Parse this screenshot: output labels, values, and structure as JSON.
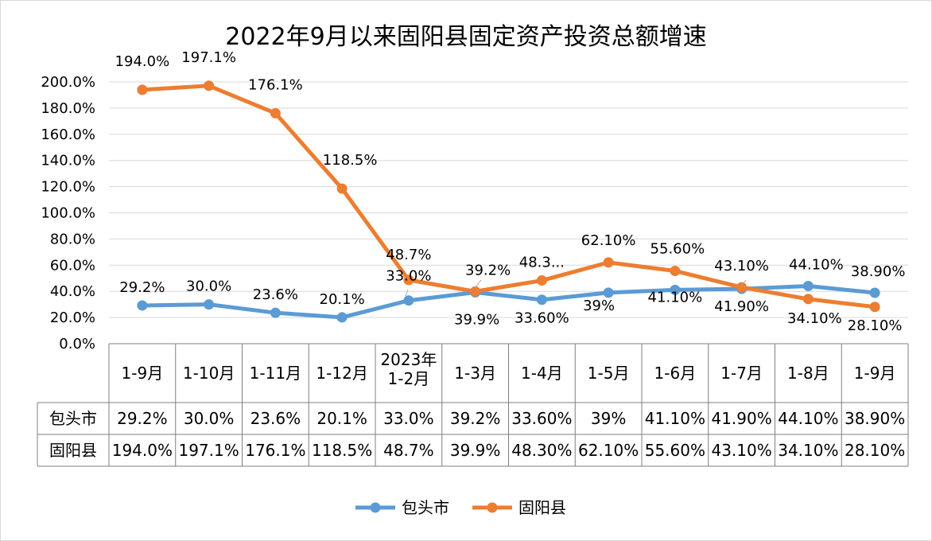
{
  "chart_data": {
    "type": "line",
    "title": "2022年9月以来固阳县固定资产投资总额增速",
    "categories": [
      "1-9月",
      "1-10月",
      "1-11月",
      "1-12月",
      "2023年\n1-2月",
      "1-3月",
      "1-4月",
      "1-5月",
      "1-6月",
      "1-7月",
      "1-8月",
      "1-9月"
    ],
    "ylim": [
      0,
      200
    ],
    "ytick_step": 20,
    "ytick_labels": [
      "0.0%",
      "20.0%",
      "40.0%",
      "60.0%",
      "80.0%",
      "100.0%",
      "120.0%",
      "140.0%",
      "160.0%",
      "180.0%",
      "200.0%"
    ],
    "grid": true,
    "legend_position": "bottom",
    "series": [
      {
        "name": "包头市",
        "color": "#5B9BD5",
        "values": [
          29.2,
          30.0,
          23.6,
          20.1,
          33.0,
          39.2,
          33.6,
          39,
          41.1,
          41.9,
          44.1,
          38.9
        ],
        "labels": [
          "29.2%",
          "30.0%",
          "23.6%",
          "20.1%",
          "33.0%",
          "39.2%",
          "33.60%",
          "39%",
          "41.10%",
          "41.90%",
          "44.10%",
          "38.90%"
        ],
        "chart_labels": [
          "29.2%",
          "30.0%",
          "23.6%",
          "20.1%",
          "33.0%",
          "39.2%",
          "33.60%",
          "39%",
          "41.10%",
          "41.90%",
          "44.10%",
          "38.90%"
        ]
      },
      {
        "name": "固阳县",
        "color": "#ED7D31",
        "values": [
          194.0,
          197.1,
          176.1,
          118.5,
          48.7,
          39.9,
          48.3,
          62.1,
          55.6,
          43.1,
          34.1,
          28.1
        ],
        "labels": [
          "194.0%",
          "197.1%",
          "176.1%",
          "118.5%",
          "48.7%",
          "39.9%",
          "48.30%",
          "62.10%",
          "55.60%",
          "43.10%",
          "34.10%",
          "28.10%"
        ],
        "chart_labels": [
          "194.0%",
          "197.1%",
          "176.1%",
          "118.5%",
          "48.7%",
          "39.9%",
          "48.3...",
          "62.10%",
          "55.60%",
          "43.10%",
          "34.10%",
          "28.10%"
        ]
      }
    ]
  }
}
